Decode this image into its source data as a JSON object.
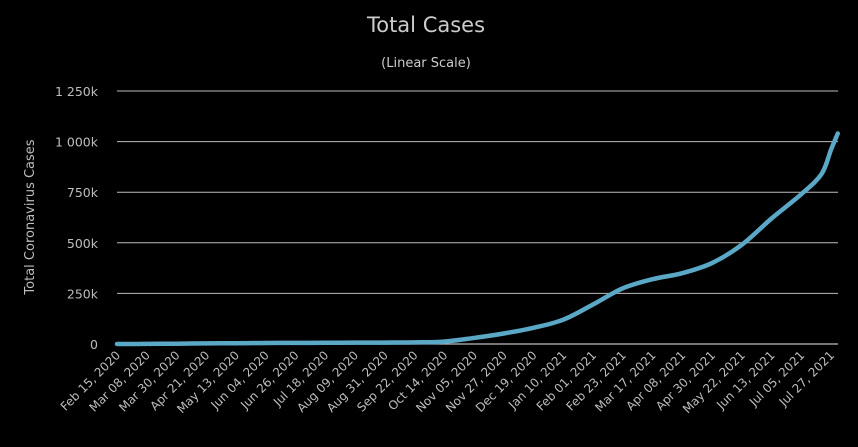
{
  "chart_data": {
    "type": "line",
    "title": "Total Cases",
    "subtitle": "(Linear Scale)",
    "xlabel": "",
    "ylabel": "Total Coronavirus Cases",
    "ylim": [
      0,
      1250000
    ],
    "yticks": [
      {
        "value": 0,
        "label": "0"
      },
      {
        "value": 250000,
        "label": "250k"
      },
      {
        "value": 500000,
        "label": "500k"
      },
      {
        "value": 750000,
        "label": "750k"
      },
      {
        "value": 1000000,
        "label": "1 000k"
      },
      {
        "value": 1250000,
        "label": "1 250k"
      }
    ],
    "categories": [
      "Feb 15, 2020",
      "Mar 08, 2020",
      "Mar 30, 2020",
      "Apr 21, 2020",
      "May 13, 2020",
      "Jun 04, 2020",
      "Jun 26, 2020",
      "Jul 18, 2020",
      "Aug 09, 2020",
      "Aug 31, 2020",
      "Sep 22, 2020",
      "Oct 14, 2020",
      "Nov 05, 2020",
      "Nov 27, 2020",
      "Dec 19, 2020",
      "Jan 10, 2021",
      "Feb 01, 2021",
      "Feb 23, 2021",
      "Mar 17, 2021",
      "Apr 08, 2021",
      "Apr 30, 2021",
      "May 22, 2021",
      "Jun 13, 2021",
      "Jul 05, 2021",
      "Jul 27, 2021"
    ],
    "series": [
      {
        "name": "",
        "color": "#5ba7c6",
        "points": [
          {
            "x": "Feb 15, 2020",
            "y": 0
          },
          {
            "x": "Mar 08, 2020",
            "y": 500
          },
          {
            "x": "Mar 30, 2020",
            "y": 1500
          },
          {
            "x": "Apr 21, 2020",
            "y": 3000
          },
          {
            "x": "May 13, 2020",
            "y": 4000
          },
          {
            "x": "Jun 04, 2020",
            "y": 5000
          },
          {
            "x": "Jun 26, 2020",
            "y": 5500
          },
          {
            "x": "Jul 18, 2020",
            "y": 6000
          },
          {
            "x": "Aug 09, 2020",
            "y": 6500
          },
          {
            "x": "Aug 31, 2020",
            "y": 7000
          },
          {
            "x": "Sep 22, 2020",
            "y": 8000
          },
          {
            "x": "Oct 14, 2020",
            "y": 12000
          },
          {
            "x": "Nov 05, 2020",
            "y": 30000
          },
          {
            "x": "Nov 27, 2020",
            "y": 52000
          },
          {
            "x": "Dec 19, 2020",
            "y": 80000
          },
          {
            "x": "Jan 10, 2021",
            "y": 120000
          },
          {
            "x": "Feb 01, 2021",
            "y": 195000
          },
          {
            "x": "Feb 23, 2021",
            "y": 275000
          },
          {
            "x": "Mar 17, 2021",
            "y": 320000
          },
          {
            "x": "Apr 08, 2021",
            "y": 350000
          },
          {
            "x": "Apr 30, 2021",
            "y": 400000
          },
          {
            "x": "May 22, 2021",
            "y": 490000
          },
          {
            "x": "Jun 13, 2021",
            "y": 620000
          },
          {
            "x": "Jul 05, 2021",
            "y": 740000
          },
          {
            "x": "Jul 20, 2021",
            "y": 840000
          },
          {
            "x": "Jul 27, 2021",
            "y": 960000
          },
          {
            "x": "Aug 01, 2021",
            "y": 1040000
          }
        ]
      }
    ],
    "grid": true,
    "legend": "none"
  },
  "colors": {
    "background": "#000000",
    "gridline": "#bdbdbd",
    "text": "#bdbdbd",
    "title": "#cccccc",
    "line": "#5ba7c6"
  }
}
